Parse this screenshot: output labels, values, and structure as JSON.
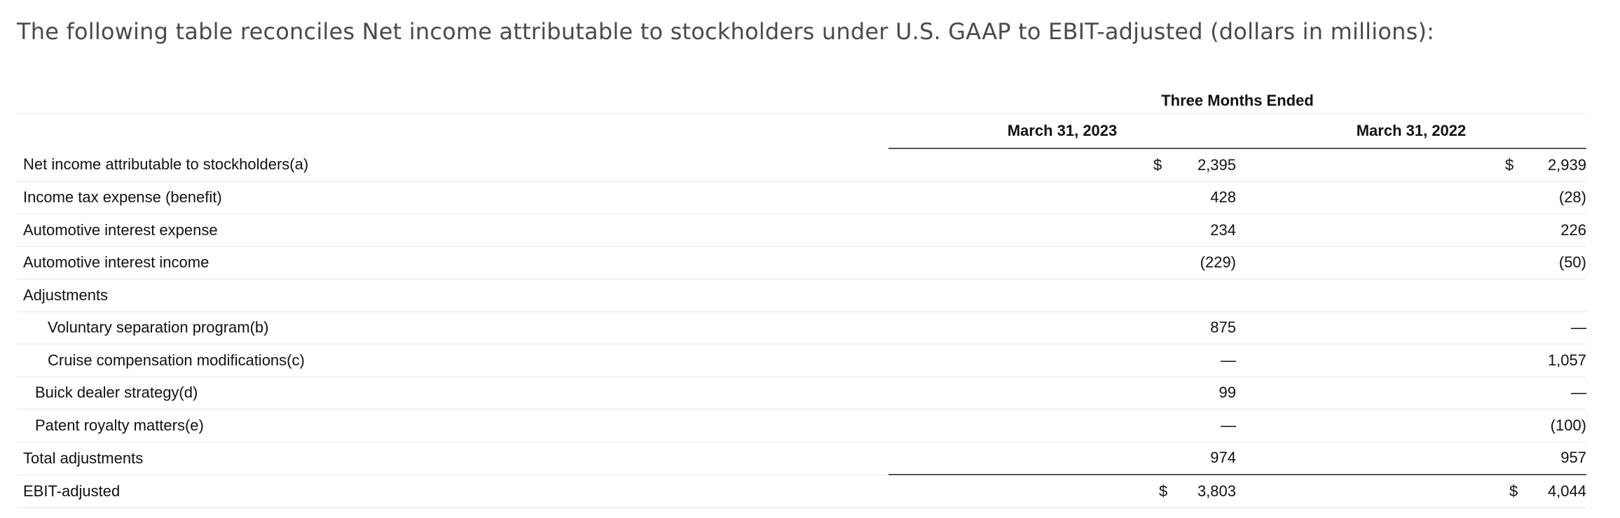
{
  "intro": "The following table reconciles Net income attributable to stockholders under U.S. GAAP to EBIT-adjusted (dollars in millions):",
  "header": {
    "period_group": "Three Months Ended",
    "col1": "March 31, 2023",
    "col2": "March 31, 2022"
  },
  "rows": [
    {
      "label": "Net income attributable to stockholders(a)",
      "sym1": "$",
      "v1": "2,395",
      "sym2": "$",
      "v2": "2,939"
    },
    {
      "label": "Income tax expense (benefit)",
      "sym1": "",
      "v1": "428",
      "sym2": "",
      "v2": "(28)"
    },
    {
      "label": "Automotive interest expense",
      "sym1": "",
      "v1": "234",
      "sym2": "",
      "v2": "226"
    },
    {
      "label": "Automotive interest income",
      "sym1": "",
      "v1": "(229)",
      "sym2": "",
      "v2": "(50)"
    },
    {
      "label": "Adjustments",
      "sym1": "",
      "v1": "",
      "sym2": "",
      "v2": ""
    },
    {
      "label": "Voluntary separation program(b)",
      "sym1": "",
      "v1": "875",
      "sym2": "",
      "v2": "—"
    },
    {
      "label": "Cruise compensation modifications(c)",
      "sym1": "",
      "v1": "—",
      "sym2": "",
      "v2": "1,057"
    },
    {
      "label": "Buick dealer strategy(d)",
      "sym1": "",
      "v1": "99",
      "sym2": "",
      "v2": "—"
    },
    {
      "label": "Patent royalty matters(e)",
      "sym1": "",
      "v1": "—",
      "sym2": "",
      "v2": "(100)"
    },
    {
      "label": "Total adjustments",
      "sym1": "",
      "v1": "974",
      "sym2": "",
      "v2": "957"
    },
    {
      "label": "EBIT-adjusted",
      "sym1": "$",
      "v1": "3,803",
      "sym2": "$",
      "v2": "4,044"
    }
  ]
}
